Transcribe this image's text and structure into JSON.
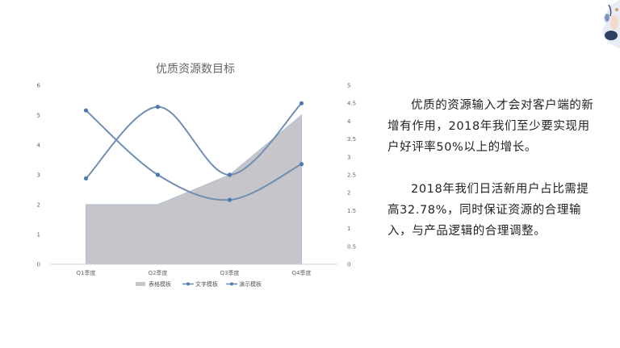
{
  "chart_data": {
    "type": "line",
    "title": "优质资源数目标",
    "categories": [
      "Q1季度",
      "Q2季度",
      "Q3季度",
      "Q4季度"
    ],
    "y_left": {
      "min": 0,
      "max": 6,
      "ticks": [
        "0",
        "1",
        "2",
        "3",
        "4",
        "5",
        "6"
      ]
    },
    "y_right": {
      "min": 0,
      "max": 5,
      "ticks": [
        "0",
        "0.5",
        "1",
        "1.5",
        "2",
        "2.5",
        "3",
        "3.5",
        "4",
        "4.5",
        "5"
      ]
    },
    "grid": false,
    "legend_position": "bottom",
    "series": [
      {
        "name": "表格模板",
        "kind": "area",
        "axis": "left",
        "values": [
          2,
          2,
          3,
          5
        ],
        "color": "#c6c5c9"
      },
      {
        "name": "文字模板",
        "kind": "line",
        "axis": "right",
        "values": [
          2.4,
          4.4,
          2.5,
          4.5
        ],
        "color": "#6f8fb4"
      },
      {
        "name": "演示模板",
        "kind": "line",
        "axis": "right",
        "values": [
          4.3,
          2.5,
          1.8,
          2.8
        ],
        "color": "#6f8fb4"
      }
    ]
  },
  "text": {
    "para1": "优质的资源输入才会对客户端的新增有作用，2018年我们至少要实现用户好评率50%以上的增长。",
    "para2": "2018年我们日活新用户占比需提高32.78%，同时保证资源的合理输入，与产品逻辑的合理调整。"
  }
}
